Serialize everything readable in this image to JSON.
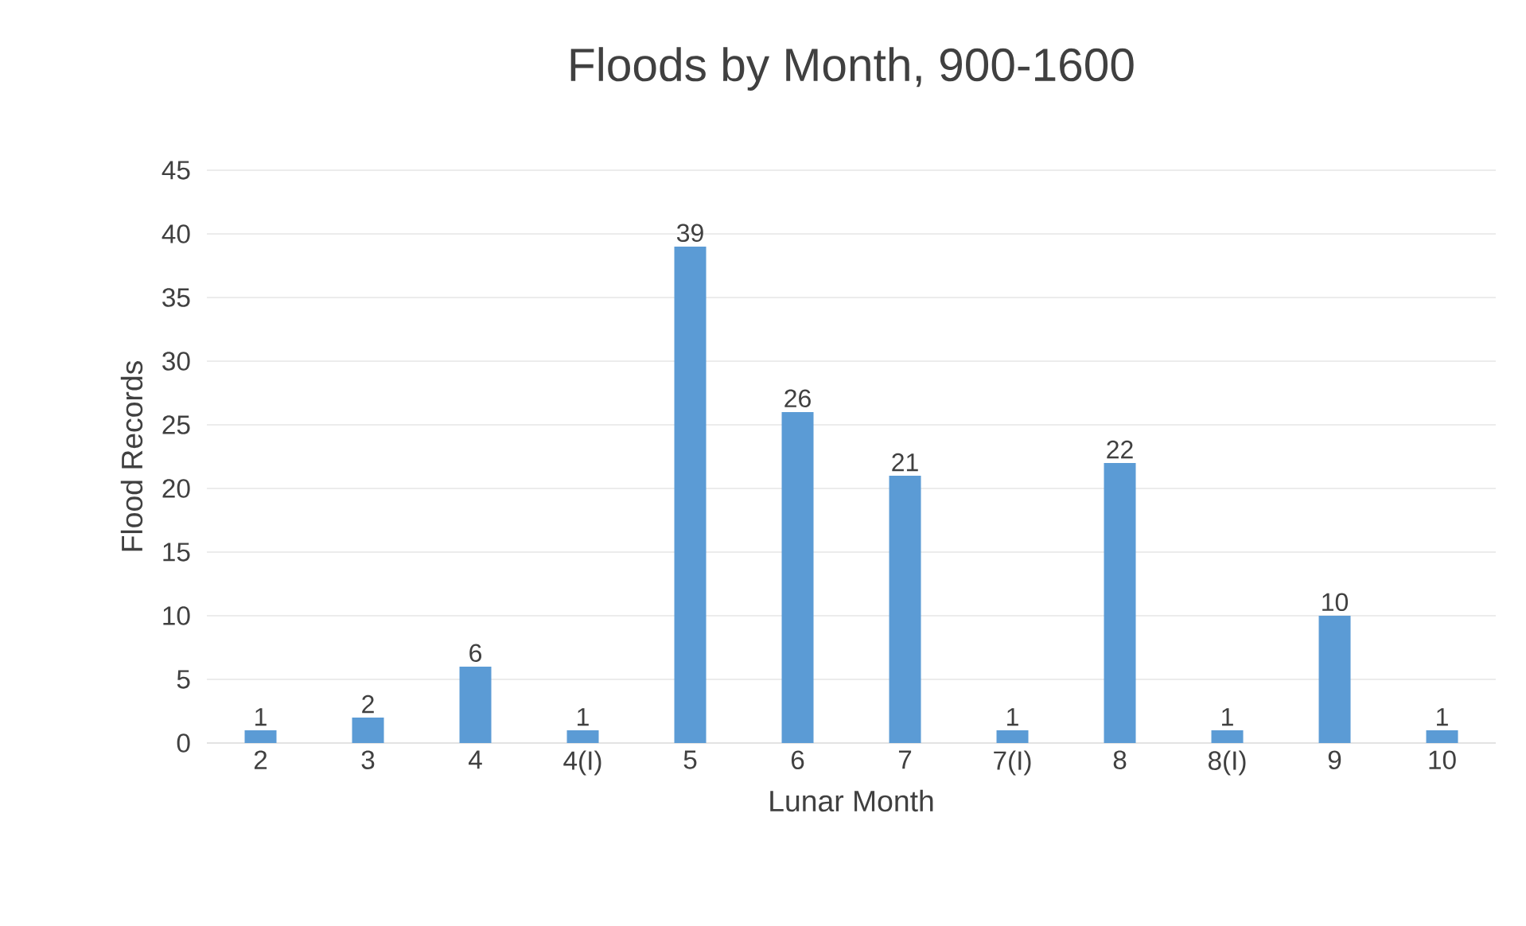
{
  "chart_data": {
    "type": "bar",
    "title": "Floods by Month, 900-1600",
    "xlabel": "Lunar Month",
    "ylabel": "Flood Records",
    "categories": [
      "2",
      "3",
      "4",
      "4(I)",
      "5",
      "6",
      "7",
      "7(I)",
      "8",
      "8(I)",
      "9",
      "10"
    ],
    "values": [
      1,
      2,
      6,
      1,
      39,
      26,
      21,
      1,
      22,
      1,
      10,
      1
    ],
    "color": "#5b9bd5",
    "ylim": [
      0,
      45
    ],
    "yticks": [
      0,
      5,
      10,
      15,
      20,
      25,
      30,
      35,
      40,
      45
    ],
    "grid": "y",
    "data_labels": true
  }
}
